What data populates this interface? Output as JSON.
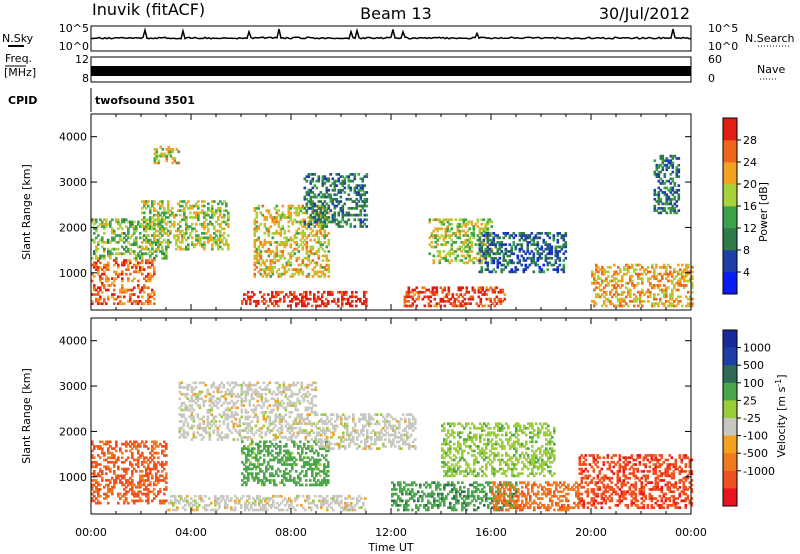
{
  "header": {
    "station": "Inuvik (fitACF)",
    "beam": "Beam 13",
    "date": "30/Jul/2012"
  },
  "meta_panels": {
    "nsky_label": "N.Sky",
    "nsearch_label": "N.Search",
    "log_top": "10^5",
    "log_bottom": "10^0",
    "freq_label_1": "Freq.",
    "freq_label_2": "[MHz]",
    "freq_ticks": [
      "12",
      "8"
    ],
    "nave_label": "Nave",
    "nave_ticks": [
      "60",
      "0"
    ],
    "cpid_label": "CPID",
    "cpid_value": "twofsound 3501"
  },
  "time_axis": {
    "label": "Time UT",
    "ticks": [
      "00:00",
      "04:00",
      "08:00",
      "12:00",
      "16:00",
      "20:00",
      "00:00"
    ]
  },
  "colors": {
    "power": [
      "#0a1cf2",
      "#1e3fa8",
      "#2f7a4a",
      "#3aa24a",
      "#a6d23a",
      "#f2a21e",
      "#f0641e",
      "#e01e14"
    ],
    "velocity": [
      "#1a2a9a",
      "#1e3fa8",
      "#2f6a55",
      "#4aa84a",
      "#9acd3a",
      "#c8c8c0",
      "#f2a21e",
      "#f07a1e",
      "#f0501e",
      "#e8141e"
    ]
  },
  "chart_data": [
    {
      "type": "heatmap",
      "title": "Power",
      "xlabel": "Time UT",
      "ylabel": "Slant Range [km]",
      "xlim": [
        0,
        24
      ],
      "ylim": [
        180,
        4500
      ],
      "x_ticks": [
        "00:00",
        "04:00",
        "08:00",
        "12:00",
        "16:00",
        "20:00",
        "00:00"
      ],
      "y_ticks": [
        1000,
        2000,
        3000,
        4000
      ],
      "colorbar": {
        "label": "Power [dB]",
        "ticks": [
          4,
          8,
          12,
          16,
          20,
          24,
          28
        ],
        "range": [
          0,
          32
        ]
      },
      "regions": [
        {
          "t0": 0.0,
          "t1": 2.5,
          "r0": 300,
          "r1": 1300,
          "value": 26
        },
        {
          "t0": 0.0,
          "t1": 3.0,
          "r0": 1300,
          "r1": 2200,
          "value": 16
        },
        {
          "t0": 2.0,
          "t1": 5.5,
          "r0": 1500,
          "r1": 2600,
          "value": 18
        },
        {
          "t0": 2.5,
          "t1": 3.5,
          "r0": 3400,
          "r1": 3800,
          "value": 20
        },
        {
          "t0": 6.0,
          "t1": 11.0,
          "r0": 250,
          "r1": 600,
          "value": 30
        },
        {
          "t0": 6.5,
          "t1": 9.5,
          "r0": 900,
          "r1": 2500,
          "value": 20
        },
        {
          "t0": 8.5,
          "t1": 11.0,
          "r0": 2000,
          "r1": 3200,
          "value": 10
        },
        {
          "t0": 12.5,
          "t1": 16.5,
          "r0": 250,
          "r1": 700,
          "value": 28
        },
        {
          "t0": 13.5,
          "t1": 16.0,
          "r0": 1200,
          "r1": 2200,
          "value": 18
        },
        {
          "t0": 15.5,
          "t1": 19.0,
          "r0": 1000,
          "r1": 1900,
          "value": 8
        },
        {
          "t0": 20.0,
          "t1": 24.0,
          "r0": 250,
          "r1": 1200,
          "value": 22
        },
        {
          "t0": 22.5,
          "t1": 23.5,
          "r0": 2300,
          "r1": 3600,
          "value": 10
        }
      ]
    },
    {
      "type": "heatmap",
      "title": "Velocity",
      "xlabel": "Time UT",
      "ylabel": "Slant Range [km]",
      "xlim": [
        0,
        24
      ],
      "ylim": [
        180,
        4500
      ],
      "x_ticks": [
        "00:00",
        "04:00",
        "08:00",
        "12:00",
        "16:00",
        "20:00",
        "00:00"
      ],
      "y_ticks": [
        1000,
        2000,
        3000,
        4000
      ],
      "colorbar": {
        "label": "Velocity [m s^-1]",
        "ticks": [
          1000,
          500,
          100,
          25,
          -25,
          -100,
          -500,
          -1000
        ]
      },
      "regions": [
        {
          "t0": 0.0,
          "t1": 3.0,
          "r0": 400,
          "r1": 1800,
          "value": -300
        },
        {
          "t0": 3.0,
          "t1": 11.0,
          "r0": 250,
          "r1": 600,
          "value": 0
        },
        {
          "t0": 3.5,
          "t1": 9.0,
          "r0": 1800,
          "r1": 3100,
          "value": 0
        },
        {
          "t0": 6.0,
          "t1": 9.5,
          "r0": 800,
          "r1": 1800,
          "value": 150
        },
        {
          "t0": 9.0,
          "t1": 13.0,
          "r0": 1600,
          "r1": 2400,
          "value": 0
        },
        {
          "t0": 12.0,
          "t1": 17.0,
          "r0": 250,
          "r1": 900,
          "value": 200
        },
        {
          "t0": 16.0,
          "t1": 19.5,
          "r0": 250,
          "r1": 900,
          "value": -200
        },
        {
          "t0": 14.0,
          "t1": 18.5,
          "r0": 1000,
          "r1": 2200,
          "value": 80
        },
        {
          "t0": 19.5,
          "t1": 24.0,
          "r0": 300,
          "r1": 1500,
          "value": -400
        }
      ]
    }
  ]
}
